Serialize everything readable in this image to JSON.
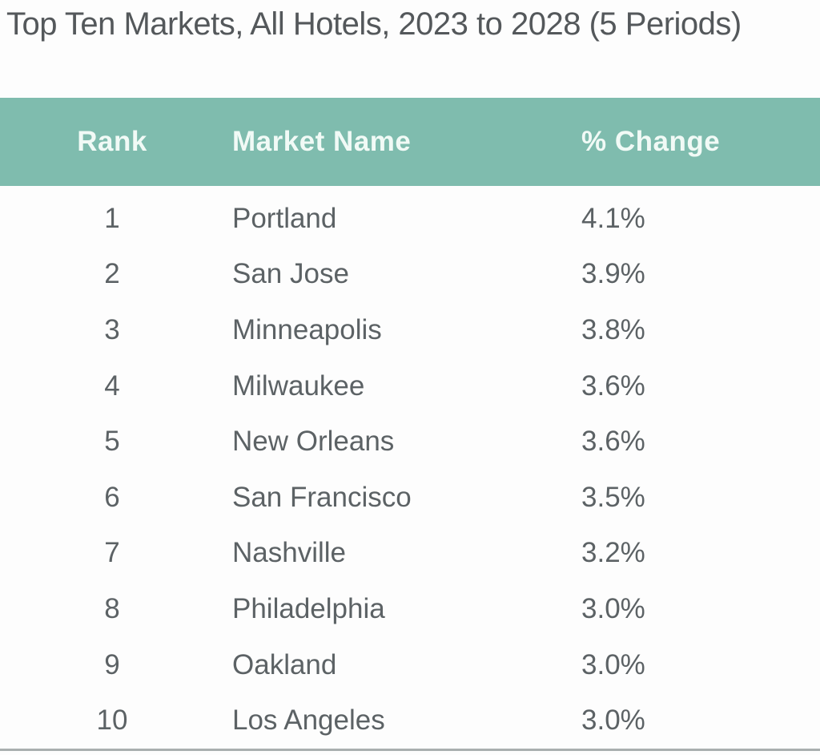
{
  "title": "Top Ten Markets, All Hotels, 2023 to 2028 (5 Periods)",
  "table": {
    "columns": [
      "Rank",
      "Market Name",
      "% Change"
    ],
    "rows": [
      {
        "rank": "1",
        "market": "Portland",
        "change": "4.1%"
      },
      {
        "rank": "2",
        "market": "San Jose",
        "change": "3.9%"
      },
      {
        "rank": "3",
        "market": "Minneapolis",
        "change": "3.8%"
      },
      {
        "rank": "4",
        "market": "Milwaukee",
        "change": "3.6%"
      },
      {
        "rank": "5",
        "market": "New Orleans",
        "change": "3.6%"
      },
      {
        "rank": "6",
        "market": "San Francisco",
        "change": "3.5%"
      },
      {
        "rank": "7",
        "market": "Nashville",
        "change": "3.2%"
      },
      {
        "rank": "8",
        "market": "Philadelphia",
        "change": "3.0%"
      },
      {
        "rank": "9",
        "market": "Oakland",
        "change": "3.0%"
      },
      {
        "rank": "10",
        "market": "Los Angeles",
        "change": "3.0%"
      }
    ]
  },
  "colors": {
    "header_bg": "#7fbcae",
    "header_text": "#f1faf6",
    "title_text": "#54585b",
    "row_text": "#5c6265",
    "bottom_rule": "#a9afaf",
    "page_bg": "#fdfdfd"
  },
  "chart_data": {
    "type": "table",
    "title": "Top Ten Markets, All Hotels, 2023 to 2028 (5 Periods)",
    "columns": [
      "Rank",
      "Market Name",
      "% Change"
    ],
    "categories": [
      "Portland",
      "San Jose",
      "Minneapolis",
      "Milwaukee",
      "New Orleans",
      "San Francisco",
      "Nashville",
      "Philadelphia",
      "Oakland",
      "Los Angeles"
    ],
    "ranks": [
      1,
      2,
      3,
      4,
      5,
      6,
      7,
      8,
      9,
      10
    ],
    "values_percent": [
      4.1,
      3.9,
      3.8,
      3.6,
      3.6,
      3.5,
      3.2,
      3.0,
      3.0,
      3.0
    ],
    "value_unit": "%"
  }
}
